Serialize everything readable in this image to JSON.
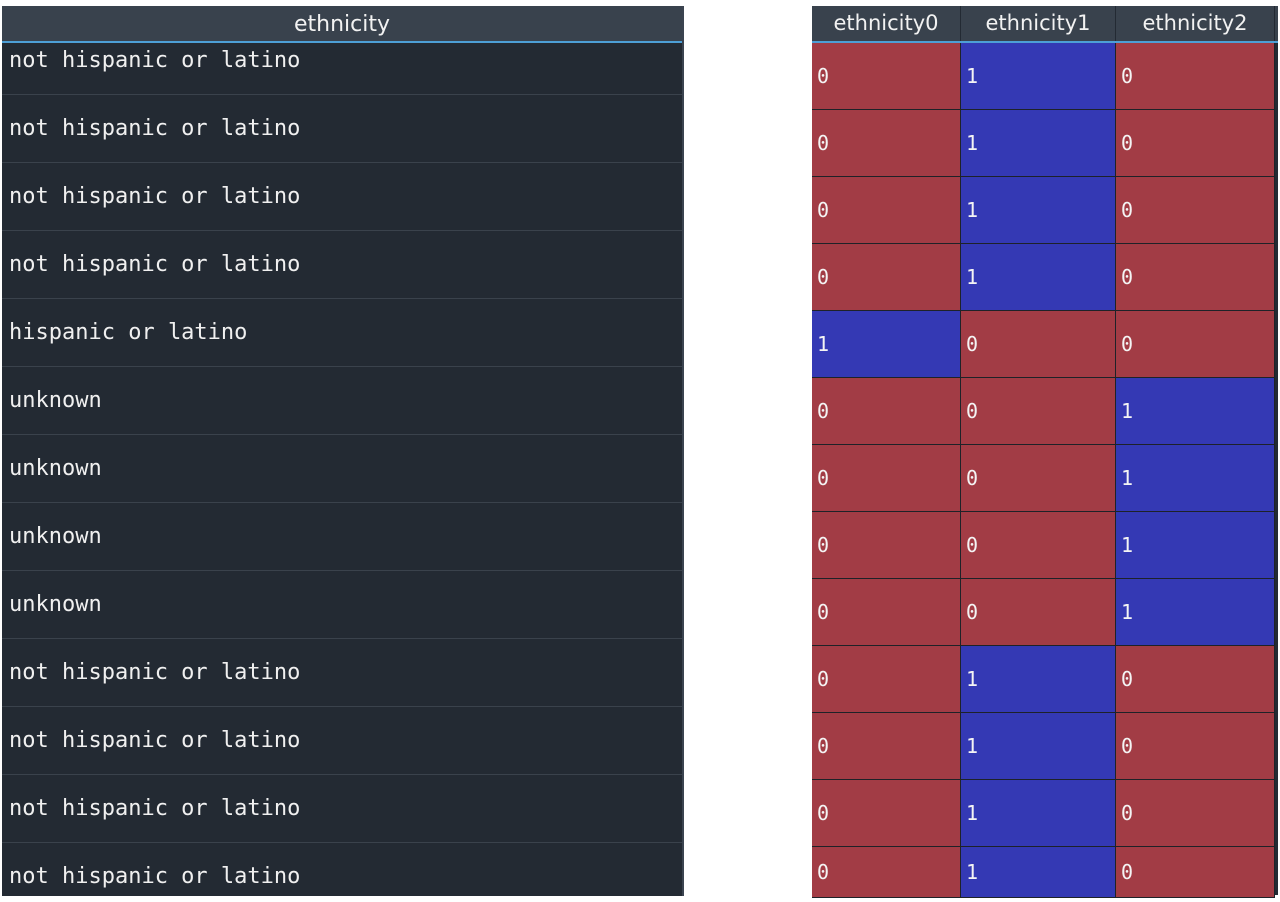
{
  "left_table": {
    "header": "ethnicity",
    "rows": [
      "not hispanic or latino",
      "not hispanic or latino",
      "not hispanic or latino",
      "not hispanic or latino",
      "hispanic or latino",
      "unknown",
      "unknown",
      "unknown",
      "unknown",
      "not hispanic or latino",
      "not hispanic or latino",
      "not hispanic or latino",
      "not hispanic or latino"
    ]
  },
  "right_table": {
    "headers": [
      "ethnicity0",
      "ethnicity1",
      "ethnicity2"
    ],
    "rows": [
      [
        "0",
        "1",
        "0"
      ],
      [
        "0",
        "1",
        "0"
      ],
      [
        "0",
        "1",
        "0"
      ],
      [
        "0",
        "1",
        "0"
      ],
      [
        "1",
        "0",
        "0"
      ],
      [
        "0",
        "0",
        "1"
      ],
      [
        "0",
        "0",
        "1"
      ],
      [
        "0",
        "0",
        "1"
      ],
      [
        "0",
        "0",
        "1"
      ],
      [
        "0",
        "1",
        "0"
      ],
      [
        "0",
        "1",
        "0"
      ],
      [
        "0",
        "1",
        "0"
      ],
      [
        "0",
        "1",
        "0"
      ]
    ]
  },
  "colors": {
    "background": "#232a33",
    "header_bg": "#39424d",
    "header_accent": "#4d9fd6",
    "value_zero": "#a23c45",
    "value_one": "#3439b4"
  }
}
